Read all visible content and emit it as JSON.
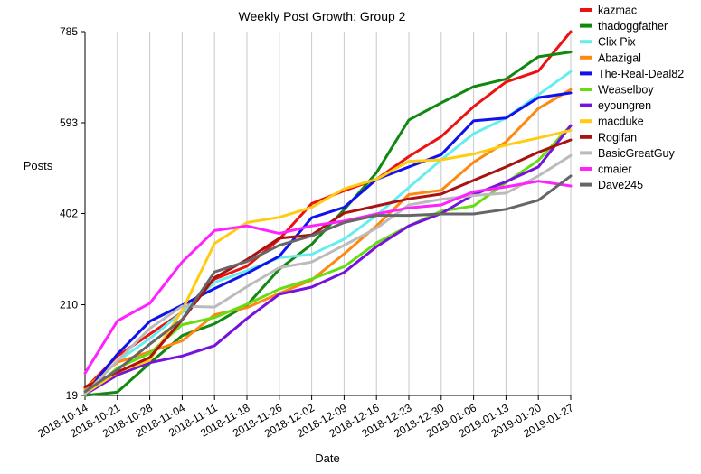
{
  "chart_data": {
    "type": "line",
    "title": "Weekly Post Growth: Group 2",
    "xlabel": "Date",
    "ylabel": "Posts",
    "x": [
      "2018-10-14",
      "2018-10-21",
      "2018-10-28",
      "2018-11-04",
      "2018-11-11",
      "2018-11-18",
      "2018-11-26",
      "2018-12-02",
      "2018-12-09",
      "2018-12-16",
      "2018-12-23",
      "2018-12-30",
      "2019-01-06",
      "2019-01-13",
      "2019-01-20",
      "2019-01-27"
    ],
    "yticks": [
      19,
      210,
      402,
      593,
      785
    ],
    "ylim": [
      19,
      785
    ],
    "grid": "vertical",
    "legend": "right",
    "series": [
      {
        "name": "kazmac",
        "color": "#ee1111",
        "values": [
          33,
          102,
          148,
          194,
          264,
          291,
          348,
          423,
          450,
          474,
          522,
          564,
          627,
          679,
          702,
          785
        ]
      },
      {
        "name": "thadoggfather",
        "color": "#118811",
        "values": [
          19,
          26,
          87,
          145,
          170,
          209,
          285,
          337,
          410,
          488,
          599,
          635,
          669,
          685,
          732,
          742
        ]
      },
      {
        "name": "Clix Pix",
        "color": "#66eeee",
        "values": [
          29,
          91,
          139,
          194,
          257,
          282,
          309,
          316,
          348,
          398,
          457,
          515,
          570,
          603,
          652,
          701
        ]
      },
      {
        "name": "Abazigal",
        "color": "#ff8811",
        "values": [
          34,
          89,
          111,
          134,
          189,
          204,
          234,
          262,
          317,
          376,
          442,
          451,
          510,
          553,
          623,
          663
        ]
      },
      {
        "name": "The-Real-Deal82",
        "color": "#1111ee",
        "values": [
          22,
          106,
          175,
          209,
          244,
          276,
          312,
          393,
          415,
          474,
          500,
          526,
          597,
          603,
          646,
          656
        ]
      },
      {
        "name": "Weaselboy",
        "color": "#66dd11",
        "values": [
          19,
          77,
          108,
          168,
          183,
          211,
          243,
          264,
          290,
          340,
          376,
          407,
          418,
          467,
          514,
          587
        ]
      },
      {
        "name": "eyoungren",
        "color": "#7711dd",
        "values": [
          21,
          62,
          88,
          102,
          124,
          181,
          232,
          247,
          278,
          332,
          376,
          402,
          442,
          469,
          500,
          587
        ]
      },
      {
        "name": "macduke",
        "color": "#ffcc11",
        "values": [
          23,
          68,
          93,
          198,
          339,
          383,
          394,
          415,
          454,
          474,
          512,
          515,
          527,
          546,
          561,
          577
        ]
      },
      {
        "name": "Rogifan",
        "color": "#aa1111",
        "values": [
          37,
          68,
          99,
          178,
          267,
          305,
          350,
          357,
          403,
          418,
          433,
          443,
          472,
          500,
          531,
          557
        ]
      },
      {
        "name": "BasicGreatGuy",
        "color": "#bbbbbb",
        "values": [
          22,
          92,
          160,
          207,
          205,
          248,
          288,
          300,
          335,
          371,
          420,
          432,
          440,
          445,
          481,
          524
        ]
      },
      {
        "name": "cmaier",
        "color": "#ff22ff",
        "values": [
          66,
          176,
          213,
          300,
          366,
          376,
          360,
          376,
          386,
          401,
          414,
          420,
          448,
          458,
          470,
          460
        ]
      },
      {
        "name": "Dave245",
        "color": "#666666",
        "values": [
          27,
          73,
          127,
          179,
          279,
          301,
          335,
          355,
          383,
          398,
          398,
          401,
          401,
          411,
          430,
          481
        ]
      }
    ]
  }
}
